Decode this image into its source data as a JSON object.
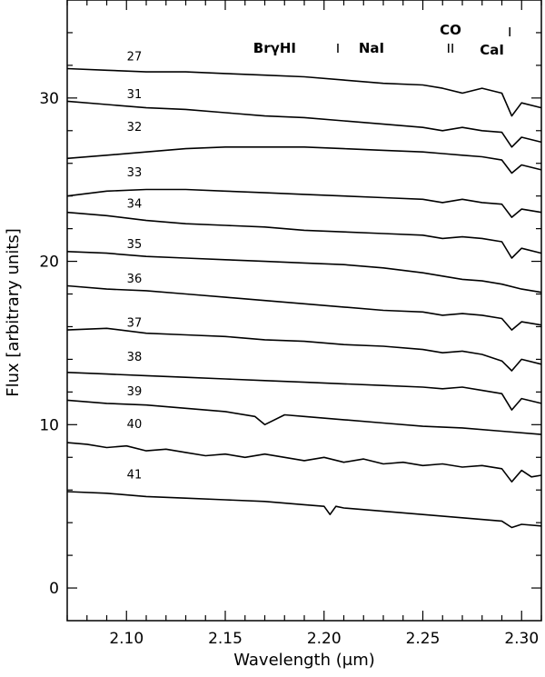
{
  "chart_data": {
    "type": "line",
    "xlabel": "Wavelength (μm)",
    "ylabel": "Flux [arbitrary units]",
    "xlim": [
      2.07,
      2.31
    ],
    "ylim": [
      -2,
      36
    ],
    "xticks": [
      2.1,
      2.15,
      2.2,
      2.25,
      2.3
    ],
    "xtick_labels": [
      "2.10",
      "2.15",
      "2.20",
      "2.25",
      "2.30"
    ],
    "yticks": [
      0,
      10,
      20,
      30
    ],
    "ytick_labels": [
      "0",
      "10",
      "20",
      "30"
    ],
    "grid": false,
    "line_labels": [
      {
        "text": "BrγHI",
        "x": 2.166
      },
      {
        "text": "NaI",
        "x": 2.207
      },
      {
        "text": "CO",
        "x": 2.294
      },
      {
        "text": "CaI",
        "x": 2.263
      }
    ],
    "series": [
      {
        "name": "27",
        "label_x": 2.104,
        "label_y": 32.3,
        "points": [
          [
            2.07,
            31.8
          ],
          [
            2.09,
            31.7
          ],
          [
            2.11,
            31.6
          ],
          [
            2.13,
            31.6
          ],
          [
            2.15,
            31.5
          ],
          [
            2.17,
            31.4
          ],
          [
            2.19,
            31.3
          ],
          [
            2.21,
            31.1
          ],
          [
            2.23,
            30.9
          ],
          [
            2.25,
            30.8
          ],
          [
            2.26,
            30.6
          ],
          [
            2.27,
            30.3
          ],
          [
            2.28,
            30.6
          ],
          [
            2.29,
            30.3
          ],
          [
            2.295,
            28.9
          ],
          [
            2.3,
            29.7
          ],
          [
            2.31,
            29.4
          ]
        ]
      },
      {
        "name": "31",
        "label_x": 2.104,
        "label_y": 30.0,
        "points": [
          [
            2.07,
            29.8
          ],
          [
            2.09,
            29.6
          ],
          [
            2.11,
            29.4
          ],
          [
            2.13,
            29.3
          ],
          [
            2.15,
            29.1
          ],
          [
            2.17,
            28.9
          ],
          [
            2.19,
            28.8
          ],
          [
            2.21,
            28.6
          ],
          [
            2.23,
            28.4
          ],
          [
            2.25,
            28.2
          ],
          [
            2.26,
            28.0
          ],
          [
            2.27,
            28.2
          ],
          [
            2.28,
            28.0
          ],
          [
            2.29,
            27.9
          ],
          [
            2.295,
            27.0
          ],
          [
            2.3,
            27.6
          ],
          [
            2.31,
            27.3
          ]
        ]
      },
      {
        "name": "32",
        "label_x": 2.104,
        "label_y": 28.0,
        "points": [
          [
            2.07,
            26.3
          ],
          [
            2.09,
            26.5
          ],
          [
            2.11,
            26.7
          ],
          [
            2.13,
            26.9
          ],
          [
            2.15,
            27.0
          ],
          [
            2.17,
            27.0
          ],
          [
            2.19,
            27.0
          ],
          [
            2.21,
            26.9
          ],
          [
            2.23,
            26.8
          ],
          [
            2.25,
            26.7
          ],
          [
            2.26,
            26.6
          ],
          [
            2.27,
            26.5
          ],
          [
            2.28,
            26.4
          ],
          [
            2.29,
            26.2
          ],
          [
            2.295,
            25.4
          ],
          [
            2.3,
            25.9
          ],
          [
            2.31,
            25.6
          ]
        ]
      },
      {
        "name": "33",
        "label_x": 2.104,
        "label_y": 25.2,
        "points": [
          [
            2.07,
            24.0
          ],
          [
            2.09,
            24.3
          ],
          [
            2.11,
            24.4
          ],
          [
            2.13,
            24.4
          ],
          [
            2.15,
            24.3
          ],
          [
            2.17,
            24.2
          ],
          [
            2.19,
            24.1
          ],
          [
            2.21,
            24.0
          ],
          [
            2.23,
            23.9
          ],
          [
            2.25,
            23.8
          ],
          [
            2.26,
            23.6
          ],
          [
            2.27,
            23.8
          ],
          [
            2.28,
            23.6
          ],
          [
            2.29,
            23.5
          ],
          [
            2.295,
            22.7
          ],
          [
            2.3,
            23.2
          ],
          [
            2.31,
            23.0
          ]
        ]
      },
      {
        "name": "34",
        "label_x": 2.104,
        "label_y": 23.3,
        "points": [
          [
            2.07,
            23.0
          ],
          [
            2.09,
            22.8
          ],
          [
            2.11,
            22.5
          ],
          [
            2.13,
            22.3
          ],
          [
            2.15,
            22.2
          ],
          [
            2.17,
            22.1
          ],
          [
            2.19,
            21.9
          ],
          [
            2.21,
            21.8
          ],
          [
            2.23,
            21.7
          ],
          [
            2.25,
            21.6
          ],
          [
            2.26,
            21.4
          ],
          [
            2.27,
            21.5
          ],
          [
            2.28,
            21.4
          ],
          [
            2.29,
            21.2
          ],
          [
            2.295,
            20.2
          ],
          [
            2.3,
            20.8
          ],
          [
            2.31,
            20.5
          ]
        ]
      },
      {
        "name": "35",
        "label_x": 2.104,
        "label_y": 20.8,
        "points": [
          [
            2.07,
            20.6
          ],
          [
            2.09,
            20.5
          ],
          [
            2.11,
            20.3
          ],
          [
            2.13,
            20.2
          ],
          [
            2.15,
            20.1
          ],
          [
            2.17,
            20.0
          ],
          [
            2.19,
            19.9
          ],
          [
            2.21,
            19.8
          ],
          [
            2.23,
            19.6
          ],
          [
            2.25,
            19.3
          ],
          [
            2.26,
            19.1
          ],
          [
            2.27,
            18.9
          ],
          [
            2.28,
            18.8
          ],
          [
            2.29,
            18.6
          ],
          [
            2.3,
            18.3
          ],
          [
            2.31,
            18.1
          ]
        ]
      },
      {
        "name": "36",
        "label_x": 2.104,
        "label_y": 18.7,
        "points": [
          [
            2.07,
            18.5
          ],
          [
            2.09,
            18.3
          ],
          [
            2.11,
            18.2
          ],
          [
            2.13,
            18.0
          ],
          [
            2.15,
            17.8
          ],
          [
            2.17,
            17.6
          ],
          [
            2.19,
            17.4
          ],
          [
            2.21,
            17.2
          ],
          [
            2.23,
            17.0
          ],
          [
            2.25,
            16.9
          ],
          [
            2.26,
            16.7
          ],
          [
            2.27,
            16.8
          ],
          [
            2.28,
            16.7
          ],
          [
            2.29,
            16.5
          ],
          [
            2.295,
            15.8
          ],
          [
            2.3,
            16.3
          ],
          [
            2.31,
            16.1
          ]
        ]
      },
      {
        "name": "37",
        "label_x": 2.104,
        "label_y": 16.0,
        "points": [
          [
            2.07,
            15.8
          ],
          [
            2.09,
            15.9
          ],
          [
            2.11,
            15.6
          ],
          [
            2.13,
            15.5
          ],
          [
            2.15,
            15.4
          ],
          [
            2.17,
            15.2
          ],
          [
            2.19,
            15.1
          ],
          [
            2.21,
            14.9
          ],
          [
            2.23,
            14.8
          ],
          [
            2.25,
            14.6
          ],
          [
            2.26,
            14.4
          ],
          [
            2.27,
            14.5
          ],
          [
            2.28,
            14.3
          ],
          [
            2.29,
            13.9
          ],
          [
            2.295,
            13.3
          ],
          [
            2.3,
            14.0
          ],
          [
            2.31,
            13.7
          ]
        ]
      },
      {
        "name": "38",
        "label_x": 2.104,
        "label_y": 13.9,
        "points": [
          [
            2.07,
            13.2
          ],
          [
            2.09,
            13.1
          ],
          [
            2.11,
            13.0
          ],
          [
            2.13,
            12.9
          ],
          [
            2.15,
            12.8
          ],
          [
            2.17,
            12.7
          ],
          [
            2.19,
            12.6
          ],
          [
            2.21,
            12.5
          ],
          [
            2.23,
            12.4
          ],
          [
            2.25,
            12.3
          ],
          [
            2.26,
            12.2
          ],
          [
            2.27,
            12.3
          ],
          [
            2.28,
            12.1
          ],
          [
            2.29,
            11.9
          ],
          [
            2.295,
            10.9
          ],
          [
            2.3,
            11.6
          ],
          [
            2.31,
            11.3
          ]
        ]
      },
      {
        "name": "39",
        "label_x": 2.104,
        "label_y": 11.8,
        "points": [
          [
            2.07,
            11.5
          ],
          [
            2.09,
            11.3
          ],
          [
            2.11,
            11.2
          ],
          [
            2.13,
            11.0
          ],
          [
            2.15,
            10.8
          ],
          [
            2.165,
            10.5
          ],
          [
            2.17,
            10.0
          ],
          [
            2.18,
            10.6
          ],
          [
            2.19,
            10.5
          ],
          [
            2.21,
            10.3
          ],
          [
            2.23,
            10.1
          ],
          [
            2.25,
            9.9
          ],
          [
            2.27,
            9.8
          ],
          [
            2.29,
            9.6
          ],
          [
            2.31,
            9.4
          ]
        ]
      },
      {
        "name": "40",
        "label_x": 2.104,
        "label_y": 9.8,
        "points": [
          [
            2.07,
            8.9
          ],
          [
            2.08,
            8.8
          ],
          [
            2.09,
            8.6
          ],
          [
            2.1,
            8.7
          ],
          [
            2.11,
            8.4
          ],
          [
            2.12,
            8.5
          ],
          [
            2.13,
            8.3
          ],
          [
            2.14,
            8.1
          ],
          [
            2.15,
            8.2
          ],
          [
            2.16,
            8.0
          ],
          [
            2.17,
            8.2
          ],
          [
            2.18,
            8.0
          ],
          [
            2.19,
            7.8
          ],
          [
            2.2,
            8.0
          ],
          [
            2.21,
            7.7
          ],
          [
            2.22,
            7.9
          ],
          [
            2.23,
            7.6
          ],
          [
            2.24,
            7.7
          ],
          [
            2.25,
            7.5
          ],
          [
            2.26,
            7.6
          ],
          [
            2.27,
            7.4
          ],
          [
            2.28,
            7.5
          ],
          [
            2.29,
            7.3
          ],
          [
            2.295,
            6.5
          ],
          [
            2.3,
            7.2
          ],
          [
            2.305,
            6.8
          ],
          [
            2.31,
            6.9
          ]
        ]
      },
      {
        "name": "41",
        "label_x": 2.104,
        "label_y": 6.7,
        "points": [
          [
            2.07,
            5.9
          ],
          [
            2.09,
            5.8
          ],
          [
            2.11,
            5.6
          ],
          [
            2.13,
            5.5
          ],
          [
            2.15,
            5.4
          ],
          [
            2.17,
            5.3
          ],
          [
            2.19,
            5.1
          ],
          [
            2.2,
            5.0
          ],
          [
            2.203,
            4.5
          ],
          [
            2.206,
            5.0
          ],
          [
            2.21,
            4.9
          ],
          [
            2.23,
            4.7
          ],
          [
            2.25,
            4.5
          ],
          [
            2.27,
            4.3
          ],
          [
            2.29,
            4.1
          ],
          [
            2.295,
            3.7
          ],
          [
            2.3,
            3.9
          ],
          [
            2.31,
            3.8
          ]
        ]
      }
    ]
  }
}
